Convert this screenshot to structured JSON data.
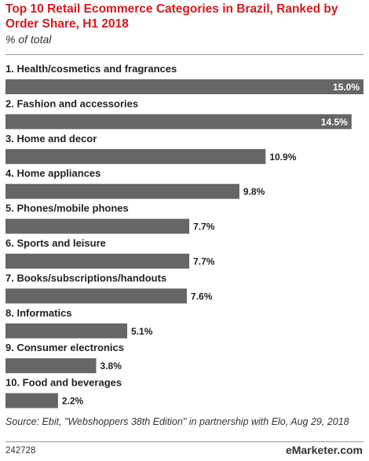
{
  "header": {
    "title": "Top 10 Retail Ecommerce Categories in Brazil, Ranked by Order Share, H1 2018",
    "subtitle": "% of total"
  },
  "chart_data": {
    "type": "bar",
    "orientation": "horizontal",
    "title": "Top 10 Retail Ecommerce Categories in Brazil, Ranked by Order Share, H1 2018",
    "subtitle": "% of total",
    "categories": [
      "1. Health/cosmetics and fragrances",
      "2. Fashion and accessories",
      "3. Home and decor",
      "4. Home appliances",
      "5. Phones/mobile phones",
      "6. Sports and leisure",
      "7. Books/subscriptions/handouts",
      "8. Informatics",
      "9. Consumer electronics",
      "10. Food and beverages"
    ],
    "values": [
      15.0,
      14.5,
      10.9,
      9.8,
      7.7,
      7.7,
      7.6,
      5.1,
      3.8,
      2.2
    ],
    "value_labels": [
      "15.0%",
      "14.5%",
      "10.9%",
      "9.8%",
      "7.7%",
      "7.7%",
      "7.6%",
      "5.1%",
      "3.8%",
      "2.2%"
    ],
    "xlim": [
      0,
      15.0
    ],
    "bar_color": "#666666",
    "value_label_color_inside": "#ffffff",
    "value_label_color_outside": "#222222"
  },
  "footer": {
    "source": "Source: Ebit, \"Webshoppers 38th Edition\" in partnership with Elo, Aug 29, 2018",
    "chart_id": "242728",
    "brand": "eMarketer.com"
  }
}
